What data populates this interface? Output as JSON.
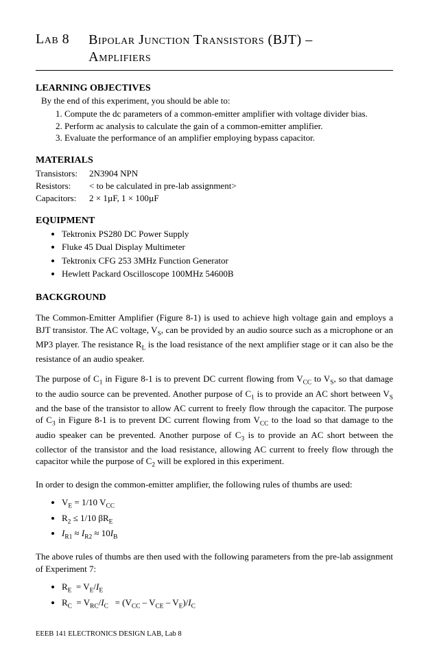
{
  "header": {
    "lab_label": "Lab 8",
    "title_line1": "Bipolar Junction Transistors (BJT) –",
    "title_line2": "Amplifiers"
  },
  "learning": {
    "heading": "LEARNING OBJECTIVES",
    "intro": "By the end of this experiment, you should be able to:",
    "items": [
      "Compute the dc parameters of a common-emitter amplifier with voltage divider bias.",
      "Perform ac analysis to calculate the gain of a common-emitter amplifier.",
      "Evaluate the performance of an amplifier employing bypass capacitor."
    ]
  },
  "materials": {
    "heading": "MATERIALS",
    "rows": [
      {
        "label": "Transistors:",
        "value": "2N3904 NPN"
      },
      {
        "label": "Resistors:",
        "value": "< to be calculated in pre-lab assignment>"
      },
      {
        "label": "Capacitors:",
        "value": "2 × 1µF, 1 × 100µF"
      }
    ]
  },
  "equipment": {
    "heading": "EQUIPMENT",
    "items": [
      "Tektronix PS280 DC Power Supply",
      "Fluke 45 Dual Display Multimeter",
      "Tektronix CFG 253 3MHz Function Generator",
      "Hewlett Packard Oscilloscope 100MHz 54600B"
    ]
  },
  "background": {
    "heading": "BACKGROUND",
    "p1_html": "The Common-Emitter Amplifier (Figure 8-1) is used to achieve high voltage gain and employs a BJT transistor. The AC voltage, V<sub>S</sub>, can be provided by an audio source such as a microphone or an MP3 player. The resistance R<sub>L</sub> is the load resistance of the next amplifier stage or it can also be the resistance of an audio speaker.",
    "p2_html": "The purpose of C<sub>1</sub> in Figure 8-1 is to prevent DC current flowing from V<sub>CC</sub> to V<sub>S</sub>, so that damage to the audio source can be prevented. Another purpose of C<sub>1</sub> is to provide an AC short between V<sub>S</sub> and the base of the transistor to allow AC current to freely flow through the capacitor. The purpose of C<sub>3</sub> in Figure 8-1 is to prevent DC current flowing from V<sub>CC</sub> to the load so that damage to the audio speaker can be prevented. Another purpose of C<sub>3</sub> is to provide an AC short between the collector of the transistor and the load resistance, allowing AC current to freely flow through the capacitor while the purpose of C<sub>2</sub> will be explored in this experiment.",
    "p3": "In order to design the common-emitter amplifier, the following rules of thumbs are used:",
    "rules_html": [
      "V<sub>E</sub> = 1/10 V<sub>CC</sub>",
      "R<sub>2</sub> ≤ 1/10 βR<sub>E</sub>",
      "<i>I</i><sub>R1</sub> ≈ <i>I</i><sub>R2</sub> ≈ 10<i>I</i><sub>B</sub>"
    ],
    "p4": "The above rules of thumbs are then used with the following parameters from the pre-lab assignment of Experiment 7:",
    "params_html": [
      "R<sub>E</sub>&nbsp;&nbsp;= V<sub>E</sub>/<i>I</i><sub>E</sub>",
      "R<sub>C</sub>&nbsp;&nbsp;= V<sub>RC</sub>/<i>I</i><sub>C</sub>&nbsp;&nbsp;&nbsp;= (V<sub>CC</sub> – V<sub>CE</sub> – V<sub>E</sub>)/<i>I</i><sub>C</sub>"
    ]
  },
  "footer": "EEEB 141 ELECTRONICS DESIGN LAB, Lab 8"
}
